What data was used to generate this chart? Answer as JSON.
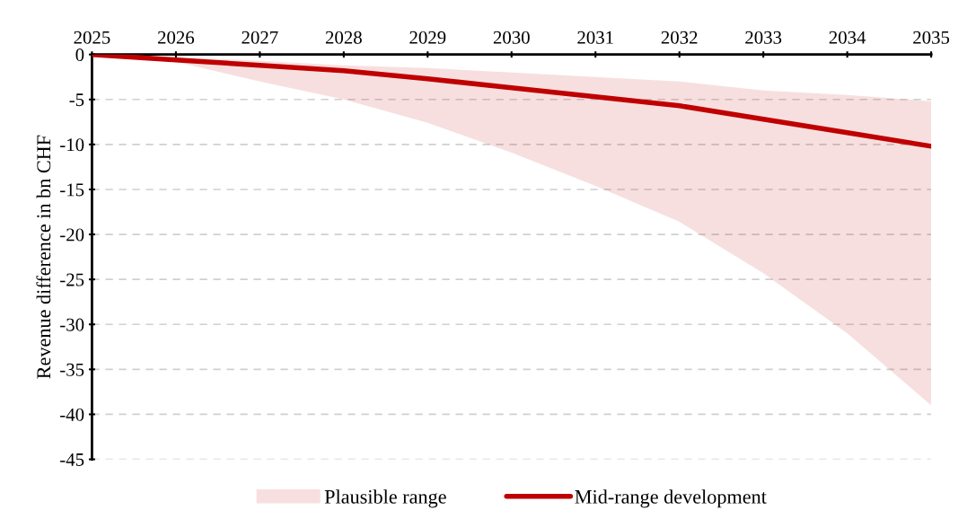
{
  "chart_data": {
    "type": "line",
    "ylabel": "Revenue difference in bn CHF",
    "x": [
      2025,
      2026,
      2027,
      2028,
      2029,
      2030,
      2031,
      2032,
      2033,
      2034,
      2035
    ],
    "xlim": [
      2025,
      2035
    ],
    "xticks": [
      2025,
      2026,
      2027,
      2028,
      2029,
      2030,
      2031,
      2032,
      2033,
      2034,
      2035
    ],
    "ylim": [
      -45,
      0
    ],
    "yticks": [
      0,
      -5,
      -10,
      -15,
      -20,
      -25,
      -30,
      -35,
      -40,
      -45
    ],
    "annotations": [
      "Plausible range"
    ],
    "grid": "y",
    "legend": "bottom",
    "line_style": "solid",
    "marker": "none",
    "series": [
      {
        "name": "Mid-range development",
        "color": "#c00000",
        "values": [
          0,
          -0.6,
          -1.2,
          -1.8,
          -2.7,
          -3.7,
          -4.7,
          -5.7,
          -7.2,
          -8.7,
          -10.2
        ],
        "upper": [
          0,
          -0.3,
          -0.7,
          -1.2,
          -1.5,
          -2.0,
          -2.5,
          -3.0,
          -4.0,
          -4.5,
          -5.2
        ],
        "lower": [
          0,
          -0.8,
          -3.0,
          -5.0,
          -7.6,
          -10.9,
          -14.6,
          -18.6,
          -24.3,
          -31,
          -39
        ]
      }
    ]
  }
}
